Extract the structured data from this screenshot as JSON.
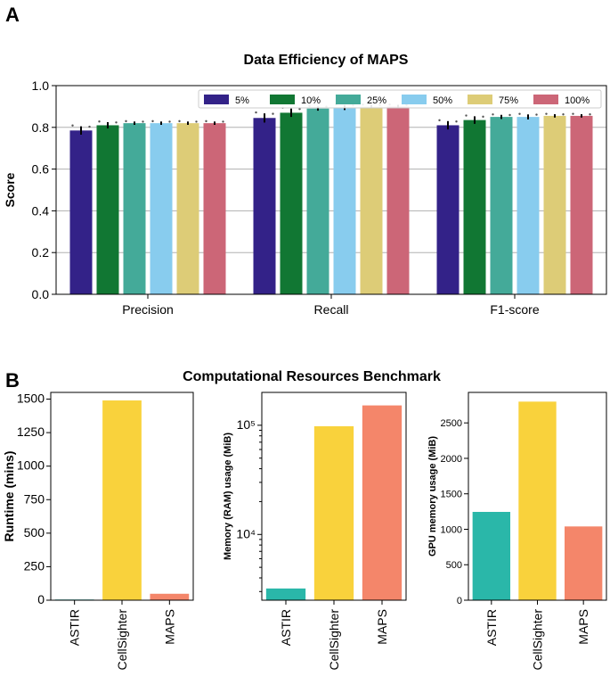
{
  "panel_a_label": "A",
  "panel_b_label": "B",
  "section_b_title": "Computational Resources Benchmark",
  "colors": {
    "series": [
      "#332288",
      "#117733",
      "#44AA99",
      "#88CCEE",
      "#DDCC77",
      "#CC6677"
    ],
    "astir": "#2ab7a9",
    "cellsighter": "#f9d23c",
    "maps": "#f4866a",
    "grid": "#b0b0b0"
  },
  "chart_data": [
    {
      "id": "data-efficiency",
      "type": "bar",
      "title": "Data Efficiency of MAPS",
      "xlabel": "",
      "ylabel": "Score",
      "ylim": [
        0,
        1.0
      ],
      "yticks": [
        0.0,
        0.2,
        0.4,
        0.6,
        0.8,
        1.0
      ],
      "ytick_labels": [
        "0.0",
        "0.2",
        "0.4",
        "0.6",
        "0.8",
        "1.0"
      ],
      "grid": true,
      "legend_position": "top-right",
      "categories": [
        "Precision",
        "Recall",
        "F1-score"
      ],
      "series": [
        {
          "name": "5%",
          "values": [
            0.785,
            0.845,
            0.81
          ],
          "errors": [
            0.02,
            0.022,
            0.02
          ]
        },
        {
          "name": "10%",
          "values": [
            0.81,
            0.87,
            0.835
          ],
          "errors": [
            0.015,
            0.02,
            0.018
          ]
        },
        {
          "name": "25%",
          "values": [
            0.82,
            0.89,
            0.85
          ],
          "errors": [
            0.008,
            0.01,
            0.01
          ]
        },
        {
          "name": "50%",
          "values": [
            0.82,
            0.895,
            0.85
          ],
          "errors": [
            0.008,
            0.012,
            0.012
          ]
        },
        {
          "name": "75%",
          "values": [
            0.82,
            0.9,
            0.855
          ],
          "errors": [
            0.008,
            0.008,
            0.008
          ]
        },
        {
          "name": "100%",
          "values": [
            0.82,
            0.9,
            0.855
          ],
          "errors": [
            0.008,
            0.008,
            0.008
          ]
        }
      ]
    },
    {
      "id": "runtime",
      "type": "bar",
      "title": "",
      "xlabel": "",
      "ylabel": "Runtime (mins)",
      "ylim": [
        0,
        1550
      ],
      "yticks": [
        0,
        250,
        500,
        750,
        1000,
        1250,
        1500
      ],
      "ytick_labels": [
        "0",
        "250",
        "500",
        "750",
        "1000",
        "1250",
        "1500"
      ],
      "scale": "linear",
      "categories": [
        "ASTIR",
        "CellSighter",
        "MAPS"
      ],
      "values": [
        5,
        1490,
        48
      ]
    },
    {
      "id": "memory",
      "type": "bar",
      "title": "",
      "xlabel": "",
      "ylabel": "Memory (RAM) usage (MiB)",
      "ylim": [
        2500,
        200000
      ],
      "scale": "log",
      "yticks": [
        10000,
        100000
      ],
      "ytick_labels": [
        "10⁴",
        "10⁵"
      ],
      "categories": [
        "ASTIR",
        "CellSighter",
        "MAPS"
      ],
      "values": [
        3200,
        98000,
        152000
      ]
    },
    {
      "id": "gpu-memory",
      "type": "bar",
      "title": "",
      "xlabel": "",
      "ylabel": "GPU memory usage (MiB)",
      "ylim": [
        0,
        2930
      ],
      "yticks": [
        0,
        500,
        1000,
        1500,
        2000,
        2500
      ],
      "ytick_labels": [
        "0",
        "500",
        "1000",
        "1500",
        "2000",
        "2500"
      ],
      "scale": "linear",
      "categories": [
        "ASTIR",
        "CellSighter",
        "MAPS"
      ],
      "values": [
        1245,
        2800,
        1040
      ]
    }
  ]
}
